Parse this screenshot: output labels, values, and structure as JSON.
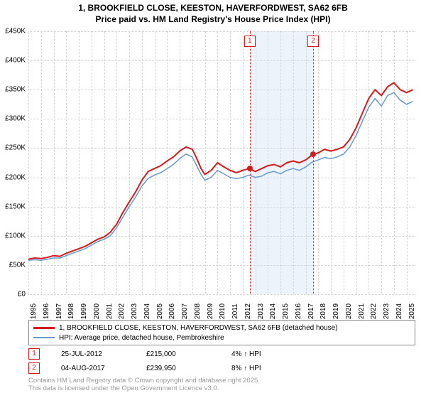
{
  "title_line1": "1, BROOKFIELD CLOSE, KEESTON, HAVERFORDWEST, SA62 6FB",
  "title_line2": "Price paid vs. HM Land Registry's House Price Index (HPI)",
  "chart": {
    "type": "line",
    "xlim": [
      1995,
      2025.7
    ],
    "ylim": [
      0,
      450000
    ],
    "xtick_years": [
      1995,
      1996,
      1997,
      1998,
      1999,
      2000,
      2001,
      2002,
      2003,
      2004,
      2005,
      2006,
      2007,
      2008,
      2009,
      2010,
      2011,
      2012,
      2013,
      2014,
      2015,
      2016,
      2017,
      2018,
      2019,
      2020,
      2021,
      2022,
      2023,
      2024,
      2025
    ],
    "ytick_values": [
      0,
      50000,
      100000,
      150000,
      200000,
      250000,
      300000,
      350000,
      400000,
      450000
    ],
    "ytick_labels": [
      "£0",
      "£50K",
      "£100K",
      "£150K",
      "£200K",
      "£250K",
      "£300K",
      "£350K",
      "£400K",
      "£450K"
    ],
    "grid_color": "#cccccc",
    "background_color": "#ffffff",
    "band_color": "rgba(200,220,240,0.35)",
    "band_start_year": 2012.56,
    "band_end_year": 2017.59,
    "series": [
      {
        "name": "property",
        "label": "1, BROOKFIELD CLOSE, KEESTON, HAVERFORDWEST, SA62 6FB (detached house)",
        "color": "#d7191c",
        "line_width": 2,
        "points": [
          [
            1995.0,
            60
          ],
          [
            1995.5,
            62
          ],
          [
            1996.0,
            61
          ],
          [
            1996.5,
            63
          ],
          [
            1997.0,
            66
          ],
          [
            1997.5,
            65
          ],
          [
            1998.0,
            70
          ],
          [
            1998.5,
            74
          ],
          [
            1999.0,
            78
          ],
          [
            1999.5,
            82
          ],
          [
            2000.0,
            88
          ],
          [
            2000.5,
            94
          ],
          [
            2001.0,
            98
          ],
          [
            2001.5,
            106
          ],
          [
            2002.0,
            120
          ],
          [
            2002.5,
            140
          ],
          [
            2003.0,
            158
          ],
          [
            2003.5,
            175
          ],
          [
            2004.0,
            195
          ],
          [
            2004.5,
            210
          ],
          [
            2005.0,
            215
          ],
          [
            2005.5,
            220
          ],
          [
            2006.0,
            228
          ],
          [
            2006.5,
            235
          ],
          [
            2007.0,
            245
          ],
          [
            2007.5,
            252
          ],
          [
            2008.0,
            248
          ],
          [
            2008.3,
            235
          ],
          [
            2008.7,
            215
          ],
          [
            2009.0,
            205
          ],
          [
            2009.5,
            212
          ],
          [
            2010.0,
            225
          ],
          [
            2010.5,
            218
          ],
          [
            2011.0,
            212
          ],
          [
            2011.5,
            208
          ],
          [
            2012.0,
            212
          ],
          [
            2012.5,
            215
          ],
          [
            2013.0,
            210
          ],
          [
            2013.5,
            215
          ],
          [
            2014.0,
            220
          ],
          [
            2014.5,
            222
          ],
          [
            2015.0,
            218
          ],
          [
            2015.5,
            225
          ],
          [
            2016.0,
            228
          ],
          [
            2016.5,
            225
          ],
          [
            2017.0,
            230
          ],
          [
            2017.5,
            238
          ],
          [
            2018.0,
            242
          ],
          [
            2018.5,
            248
          ],
          [
            2019.0,
            245
          ],
          [
            2019.5,
            248
          ],
          [
            2020.0,
            252
          ],
          [
            2020.5,
            265
          ],
          [
            2021.0,
            285
          ],
          [
            2021.5,
            310
          ],
          [
            2022.0,
            335
          ],
          [
            2022.5,
            350
          ],
          [
            2023.0,
            340
          ],
          [
            2023.5,
            355
          ],
          [
            2024.0,
            362
          ],
          [
            2024.5,
            350
          ],
          [
            2025.0,
            345
          ],
          [
            2025.5,
            350
          ]
        ]
      },
      {
        "name": "hpi",
        "label": "HPI: Average price, detached house, Pembrokeshire",
        "color": "#6699cc",
        "line_width": 1.5,
        "points": [
          [
            1995.0,
            58
          ],
          [
            1995.5,
            59
          ],
          [
            1996.0,
            58
          ],
          [
            1996.5,
            60
          ],
          [
            1997.0,
            62
          ],
          [
            1997.5,
            62
          ],
          [
            1998.0,
            66
          ],
          [
            1998.5,
            70
          ],
          [
            1999.0,
            74
          ],
          [
            1999.5,
            78
          ],
          [
            2000.0,
            84
          ],
          [
            2000.5,
            90
          ],
          [
            2001.0,
            94
          ],
          [
            2001.5,
            100
          ],
          [
            2002.0,
            114
          ],
          [
            2002.5,
            132
          ],
          [
            2003.0,
            150
          ],
          [
            2003.5,
            166
          ],
          [
            2004.0,
            185
          ],
          [
            2004.5,
            198
          ],
          [
            2005.0,
            204
          ],
          [
            2005.5,
            208
          ],
          [
            2006.0,
            215
          ],
          [
            2006.5,
            222
          ],
          [
            2007.0,
            232
          ],
          [
            2007.5,
            240
          ],
          [
            2008.0,
            235
          ],
          [
            2008.3,
            222
          ],
          [
            2008.7,
            205
          ],
          [
            2009.0,
            195
          ],
          [
            2009.5,
            200
          ],
          [
            2010.0,
            212
          ],
          [
            2010.5,
            206
          ],
          [
            2011.0,
            200
          ],
          [
            2011.5,
            198
          ],
          [
            2012.0,
            200
          ],
          [
            2012.5,
            204
          ],
          [
            2013.0,
            200
          ],
          [
            2013.5,
            202
          ],
          [
            2014.0,
            208
          ],
          [
            2014.5,
            210
          ],
          [
            2015.0,
            206
          ],
          [
            2015.5,
            212
          ],
          [
            2016.0,
            215
          ],
          [
            2016.5,
            212
          ],
          [
            2017.0,
            218
          ],
          [
            2017.5,
            226
          ],
          [
            2018.0,
            230
          ],
          [
            2018.5,
            234
          ],
          [
            2019.0,
            232
          ],
          [
            2019.5,
            235
          ],
          [
            2020.0,
            240
          ],
          [
            2020.5,
            252
          ],
          [
            2021.0,
            272
          ],
          [
            2021.5,
            296
          ],
          [
            2022.0,
            320
          ],
          [
            2022.5,
            335
          ],
          [
            2023.0,
            322
          ],
          [
            2023.5,
            340
          ],
          [
            2024.0,
            345
          ],
          [
            2024.5,
            332
          ],
          [
            2025.0,
            325
          ],
          [
            2025.5,
            330
          ]
        ]
      }
    ],
    "sale_markers": [
      {
        "num": "1",
        "year": 2012.56,
        "price": 215000,
        "color": "#d7191c"
      },
      {
        "num": "2",
        "year": 2017.59,
        "price": 239950,
        "color": "#d7191c"
      }
    ]
  },
  "legend": {
    "border_color": "#888888"
  },
  "sales": [
    {
      "num": "1",
      "date": "25-JUL-2012",
      "price": "£215,000",
      "delta": "4% ↑ HPI",
      "color": "#d7191c"
    },
    {
      "num": "2",
      "date": "04-AUG-2017",
      "price": "£239,950",
      "delta": "8% ↑ HPI",
      "color": "#d7191c"
    }
  ],
  "footer_line1": "Contains HM Land Registry data © Crown copyright and database right 2025.",
  "footer_line2": "This data is licensed under the Open Government Licence v3.0."
}
